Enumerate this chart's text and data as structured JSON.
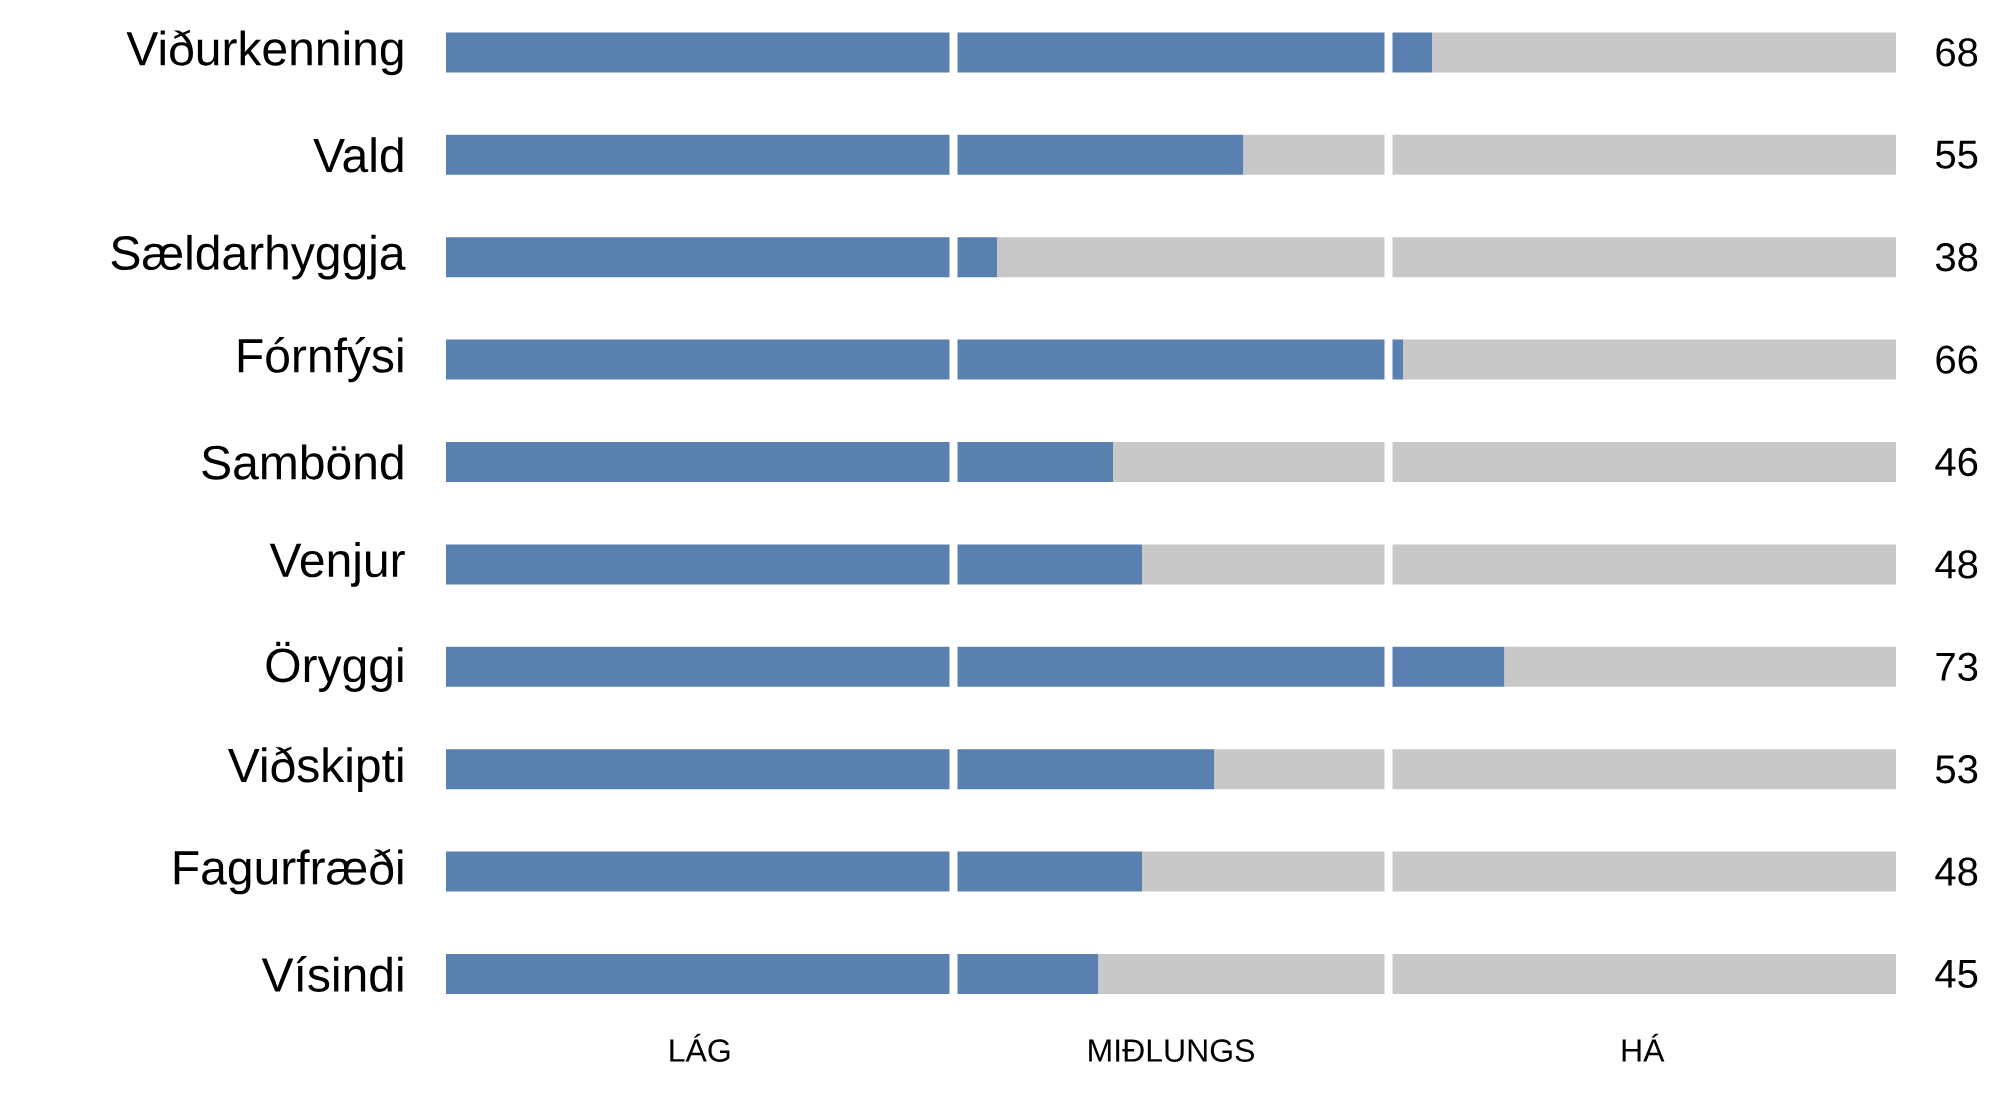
{
  "chart_data": {
    "type": "bar",
    "orientation": "horizontal",
    "stacked": true,
    "categories": [
      "Viðurkenning",
      "Vald",
      "Sældarhyggja",
      "Fórnfýsi",
      "Sambönd",
      "Venjur",
      "Öryggi",
      "Viðskipti",
      "Fagurfræði",
      "Vísindi"
    ],
    "series": [
      {
        "color": "#5a80b0",
        "values": [
          68,
          55,
          38,
          66,
          46,
          48,
          73,
          53,
          48,
          45
        ],
        "value_labels": [
          "68",
          "55",
          "38",
          "66",
          "46",
          "48",
          "73",
          "53",
          "48",
          "45"
        ]
      },
      {
        "color": "#c8c8c8",
        "values": [
          32,
          45,
          62,
          34,
          54,
          52,
          27,
          47,
          52,
          55
        ]
      }
    ],
    "xlim": [
      0,
      100
    ],
    "tick_labels": "y",
    "annotations": [
      "LÁG",
      "MIÐLUNGS",
      "HÁ"
    ],
    "ref_lines": [
      {
        "axis": "x",
        "value": 35,
        "color": "#ffffff"
      },
      {
        "axis": "x",
        "value": 65,
        "color": "#ffffff"
      }
    ]
  }
}
